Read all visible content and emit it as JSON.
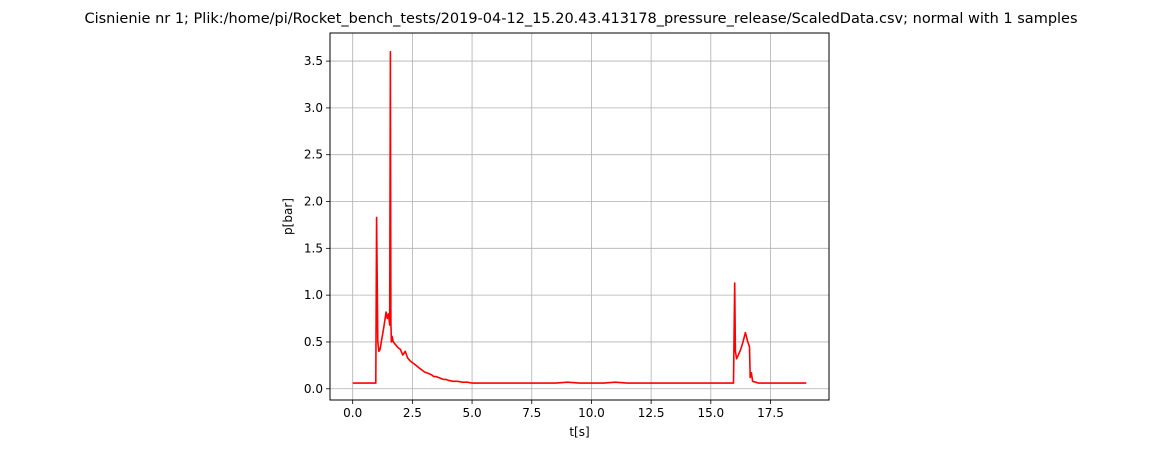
{
  "chart_data": {
    "type": "line",
    "title": "Cisnienie nr 1; Plik:/home/pi/Rocket_bench_tests/2019-04-12_15.20.43.413178_pressure_release/ScaledData.csv; normal with 1 samples",
    "xlabel": "t[s]",
    "ylabel": "p[bar]",
    "xlim": [
      -0.95,
      19.95
    ],
    "ylim": [
      -0.12,
      3.8
    ],
    "grid": true,
    "x_ticks": [
      0.0,
      2.5,
      5.0,
      7.5,
      10.0,
      12.5,
      15.0,
      17.5
    ],
    "x_tick_labels": [
      "0.0",
      "2.5",
      "5.0",
      "7.5",
      "10.0",
      "12.5",
      "15.0",
      "17.5"
    ],
    "y_ticks": [
      0.0,
      0.5,
      1.0,
      1.5,
      2.0,
      2.5,
      3.0,
      3.5
    ],
    "y_tick_labels": [
      "0.0",
      "0.5",
      "1.0",
      "1.5",
      "2.0",
      "2.5",
      "3.0",
      "3.5"
    ],
    "series": [
      {
        "color": "#ff0000",
        "x": [
          0.0,
          0.5,
          0.97,
          1.0,
          1.05,
          1.1,
          1.15,
          1.2,
          1.3,
          1.4,
          1.45,
          1.5,
          1.55,
          1.58,
          1.6,
          1.62,
          1.65,
          1.7,
          1.8,
          1.9,
          2.0,
          2.1,
          2.2,
          2.3,
          2.4,
          2.5,
          2.6,
          2.7,
          2.8,
          2.9,
          3.0,
          3.1,
          3.2,
          3.3,
          3.4,
          3.5,
          3.6,
          3.7,
          3.8,
          3.9,
          4.0,
          4.2,
          4.4,
          4.6,
          4.8,
          5.0,
          5.5,
          6.0,
          6.5,
          7.0,
          7.5,
          8.0,
          8.5,
          9.0,
          9.5,
          10.0,
          10.5,
          11.0,
          11.5,
          12.0,
          12.5,
          13.0,
          13.5,
          14.0,
          14.5,
          15.0,
          15.5,
          15.95,
          16.0,
          16.03,
          16.08,
          16.15,
          16.25,
          16.35,
          16.45,
          16.55,
          16.62,
          16.65,
          16.7,
          16.75,
          17.0,
          17.5,
          18.0,
          18.5,
          19.0
        ],
        "y": [
          0.06,
          0.06,
          0.06,
          1.83,
          0.5,
          0.4,
          0.42,
          0.5,
          0.65,
          0.82,
          0.75,
          0.8,
          0.68,
          3.6,
          0.7,
          0.5,
          0.56,
          0.5,
          0.47,
          0.44,
          0.42,
          0.36,
          0.4,
          0.33,
          0.3,
          0.28,
          0.26,
          0.24,
          0.22,
          0.2,
          0.18,
          0.17,
          0.16,
          0.15,
          0.13,
          0.13,
          0.12,
          0.11,
          0.1,
          0.1,
          0.09,
          0.08,
          0.08,
          0.07,
          0.07,
          0.06,
          0.06,
          0.06,
          0.06,
          0.06,
          0.06,
          0.06,
          0.06,
          0.07,
          0.06,
          0.06,
          0.06,
          0.07,
          0.06,
          0.06,
          0.06,
          0.06,
          0.06,
          0.06,
          0.06,
          0.06,
          0.06,
          0.06,
          1.13,
          0.4,
          0.32,
          0.36,
          0.42,
          0.5,
          0.6,
          0.5,
          0.45,
          0.12,
          0.17,
          0.08,
          0.06,
          0.06,
          0.06,
          0.06,
          0.06
        ]
      }
    ]
  }
}
